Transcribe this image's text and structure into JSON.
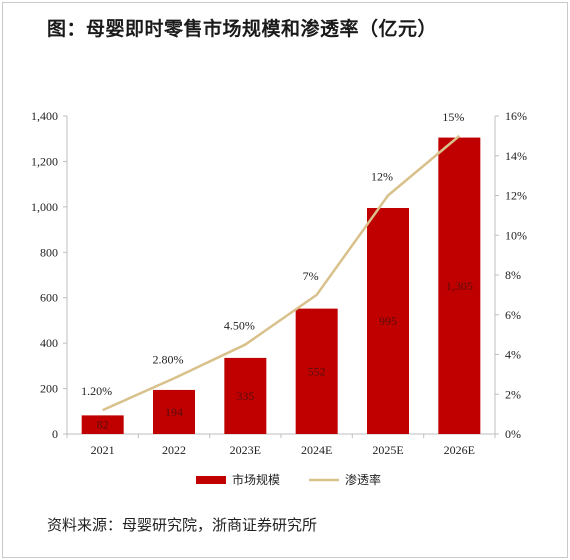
{
  "title": "图：母婴即时零售市场规模和渗透率（亿元）",
  "source": "资料来源：母婴研究院，浙商证券研究所",
  "colors": {
    "bar": "#c00000",
    "line": "#d9c18c",
    "bar_label": "#5a0c0c",
    "axis": "#bfbfbf"
  },
  "chart_data": {
    "type": "bar",
    "categories": [
      "2021",
      "2022",
      "2023E",
      "2024E",
      "2025E",
      "2026E"
    ],
    "series": [
      {
        "name": "市场规模",
        "type": "bar",
        "axis": "left",
        "values": [
          82,
          194,
          335,
          552,
          995,
          1305
        ],
        "labels": [
          "82",
          "194",
          "335",
          "552",
          "995",
          "1,305"
        ]
      },
      {
        "name": "渗透率",
        "type": "line",
        "axis": "right",
        "values": [
          1.2,
          2.8,
          4.5,
          7,
          12,
          15
        ],
        "labels": [
          "1.20%",
          "2.80%",
          "4.50%",
          "7%",
          "12%",
          "15%"
        ]
      }
    ],
    "y_left": {
      "ylim": [
        0,
        1400
      ],
      "ticks": [
        "0",
        "200",
        "400",
        "600",
        "800",
        "1,000",
        "1,200",
        "1,400"
      ]
    },
    "y_right": {
      "ylim": [
        0,
        16
      ],
      "ticks": [
        "0%",
        "2%",
        "4%",
        "6%",
        "8%",
        "10%",
        "12%",
        "14%",
        "16%"
      ]
    },
    "grid": false,
    "legend_position": "bottom"
  }
}
